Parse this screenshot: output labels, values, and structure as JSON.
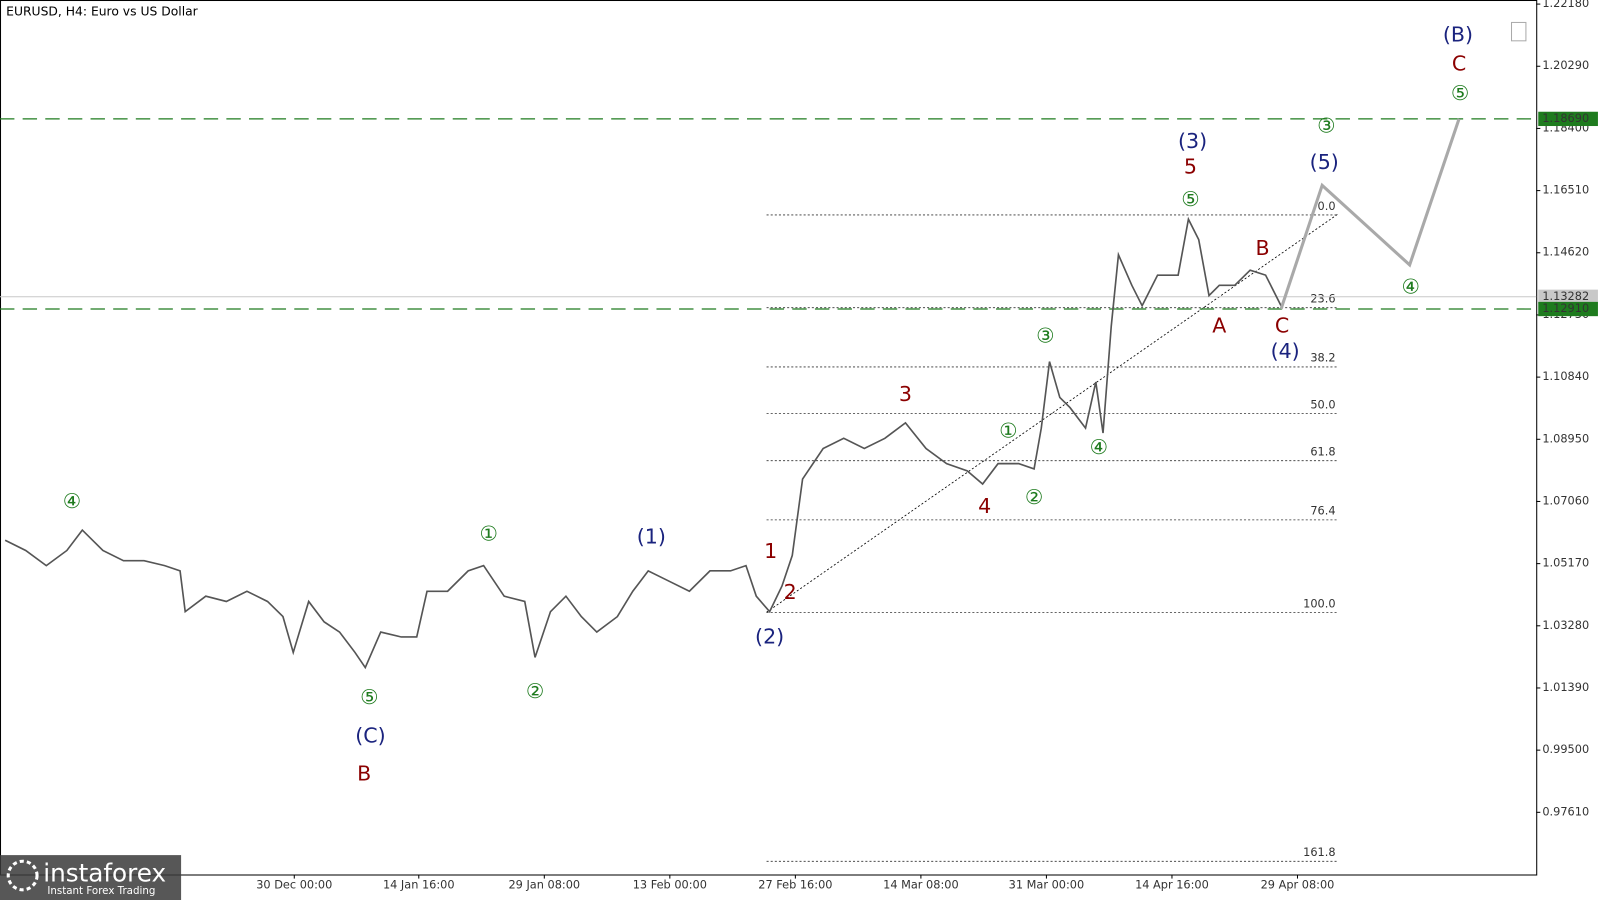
{
  "chart_data": {
    "type": "line",
    "title": "EURUSD, H4:  Euro vs US Dollar",
    "x": [
      5,
      25,
      45,
      65,
      80,
      100,
      120,
      140,
      160,
      175,
      180,
      200,
      220,
      240,
      260,
      275,
      285,
      300,
      315,
      330,
      345,
      355,
      370,
      390,
      405,
      415,
      435,
      455,
      470,
      490,
      510,
      520,
      535,
      550,
      565,
      580,
      600,
      615,
      630,
      650,
      670,
      690,
      710,
      725,
      735,
      748,
      760,
      770,
      780,
      800,
      820,
      840,
      860,
      880,
      900,
      920,
      940,
      955,
      970,
      990,
      1005,
      1012,
      1020,
      1030,
      1040,
      1055,
      1065,
      1072,
      1080,
      1087,
      1100,
      1110,
      1125,
      1145,
      1155,
      1165,
      1175,
      1185,
      1200,
      1215,
      1230,
      1245
    ],
    "values": [
      1.0588,
      1.0557,
      1.0511,
      1.0557,
      1.0619,
      1.0557,
      1.0526,
      1.0526,
      1.0511,
      1.0495,
      1.0371,
      1.0418,
      1.0402,
      1.0433,
      1.0402,
      1.0356,
      1.0247,
      1.0402,
      1.034,
      1.0309,
      1.0247,
      1.0201,
      1.0309,
      1.0294,
      1.0294,
      1.0433,
      1.0433,
      1.0495,
      1.0511,
      1.0418,
      1.0402,
      1.0232,
      1.0371,
      1.0418,
      1.0356,
      1.0309,
      1.0356,
      1.0433,
      1.0495,
      1.0464,
      1.0433,
      1.0495,
      1.0495,
      1.0511,
      1.0418,
      1.0371,
      1.0449,
      1.0542,
      1.0774,
      1.0867,
      1.0898,
      1.0867,
      1.0898,
      1.0945,
      1.0867,
      1.0821,
      1.0799,
      1.0759,
      1.0821,
      1.0821,
      1.0805,
      1.0929,
      1.1131,
      1.1022,
      1.0991,
      1.0929,
      1.1069,
      1.0914,
      1.1239,
      1.1456,
      1.1363,
      1.1301,
      1.1394,
      1.1394,
      1.1564,
      1.1502,
      1.1332,
      1.1363,
      1.1363,
      1.1409,
      1.1394,
      1.1301
    ],
    "color": "#555555",
    "forecast": {
      "x": [
        1245,
        1285,
        1370,
        1418
      ],
      "values": [
        1.1291,
        1.1667,
        1.1425,
        1.1869
      ],
      "color": "#a9a9a9"
    },
    "xlim": [
      0,
      1493
    ],
    "ylim": [
      0.9572,
      1.22304
    ],
    "xticks": [
      {
        "value": 286,
        "label": "30 Dec 00:00"
      },
      {
        "value": 407,
        "label": "14 Jan 16:00"
      },
      {
        "value": 529,
        "label": "29 Jan 08:00"
      },
      {
        "value": 651,
        "label": "13 Feb 00:00"
      },
      {
        "value": 773,
        "label": "27 Feb 16:00"
      },
      {
        "value": 895,
        "label": "14 Mar 08:00"
      },
      {
        "value": 1017,
        "label": "31 Mar 00:00"
      },
      {
        "value": 1139,
        "label": "14 Apr 16:00"
      },
      {
        "value": 1261,
        "label": "29 Apr 08:00"
      }
    ],
    "yticks": [
      {
        "value": 1.2218,
        "label": "1.22180"
      },
      {
        "value": 1.2029,
        "label": "1.20290"
      },
      {
        "value": 1.184,
        "label": "1.18400"
      },
      {
        "value": 1.1651,
        "label": "1.16510"
      },
      {
        "value": 1.1462,
        "label": "1.14620"
      },
      {
        "value": 1.1273,
        "label": "1.12730"
      },
      {
        "value": 1.1084,
        "label": "1.10840"
      },
      {
        "value": 1.0895,
        "label": "1.08950"
      },
      {
        "value": 1.0706,
        "label": "1.07060"
      },
      {
        "value": 1.0517,
        "label": "1.05170"
      },
      {
        "value": 1.0328,
        "label": "1.03280"
      },
      {
        "value": 1.0139,
        "label": "1.01390"
      },
      {
        "value": 0.995,
        "label": "0.99500"
      },
      {
        "value": 0.9761,
        "label": "0.97610"
      }
    ],
    "levels": [
      {
        "value": 1.13282,
        "label": "1.13282",
        "color": "#c8c8c8"
      },
      {
        "value": 1.1869,
        "label": "1.18690",
        "color": "#1e7b1e"
      },
      {
        "value": 1.1291,
        "label": "1.12910",
        "color": "#1e7b1e"
      }
    ],
    "fib_levels": [
      {
        "label": "0.0",
        "value": 1.1577
      },
      {
        "label": "23.6",
        "value": 1.1295
      },
      {
        "label": "38.2",
        "value": 1.1115
      },
      {
        "label": "50.0",
        "value": 1.0973
      },
      {
        "label": "61.8",
        "value": 1.083
      },
      {
        "label": "76.4",
        "value": 1.065
      },
      {
        "label": "100.0",
        "value": 1.0368
      },
      {
        "label": "161.8",
        "value": 0.9612
      }
    ],
    "annotations": [
      {
        "text": "④",
        "color": "#1e7b1e"
      },
      {
        "text": "①",
        "color": "#1e7b1e"
      },
      {
        "text": "(1)",
        "color": "#1a237e"
      },
      {
        "text": "⑤",
        "color": "#1e7b1e"
      },
      {
        "text": "(C)",
        "color": "#1a237e"
      },
      {
        "text": "B",
        "color": "#8b0000"
      },
      {
        "text": "②",
        "color": "#1e7b1e"
      },
      {
        "text": "1",
        "color": "#8b0000"
      },
      {
        "text": "2",
        "color": "#8b0000"
      },
      {
        "text": "(2)",
        "color": "#1a237e"
      },
      {
        "text": "3",
        "color": "#8b0000"
      },
      {
        "text": "4",
        "color": "#8b0000"
      },
      {
        "text": "①",
        "color": "#1e7b1e"
      },
      {
        "text": "②",
        "color": "#1e7b1e"
      },
      {
        "text": "③",
        "color": "#1e7b1e"
      },
      {
        "text": "④",
        "color": "#1e7b1e"
      },
      {
        "text": "(3)",
        "color": "#1a237e"
      },
      {
        "text": "5",
        "color": "#8b0000"
      },
      {
        "text": "⑤",
        "color": "#1e7b1e"
      },
      {
        "text": "A",
        "color": "#8b0000"
      },
      {
        "text": "B",
        "color": "#8b0000"
      },
      {
        "text": "C",
        "color": "#8b0000"
      },
      {
        "text": "(4)",
        "color": "#1a237e"
      },
      {
        "text": "(5)",
        "color": "#1a237e"
      },
      {
        "text": "③",
        "color": "#1e7b1e"
      },
      {
        "text": "④",
        "color": "#1e7b1e"
      },
      {
        "text": "⑤",
        "color": "#1e7b1e"
      },
      {
        "text": "C",
        "color": "#8b0000"
      },
      {
        "text": "(B)",
        "color": "#1a237e"
      }
    ]
  },
  "logo": {
    "name": "instaforex",
    "tagline": "Instant Forex Trading"
  }
}
